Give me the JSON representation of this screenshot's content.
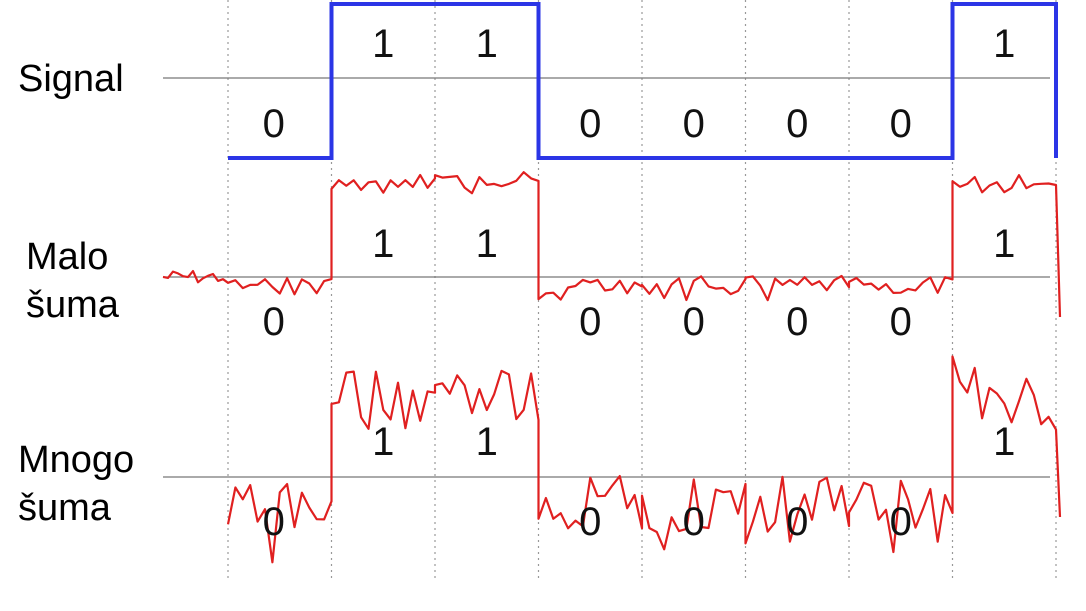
{
  "rows": [
    {
      "label_lines": [
        "Signal"
      ],
      "bit_labels": [
        "0",
        "1",
        "1",
        "0",
        "0",
        "0",
        "0",
        "1"
      ]
    },
    {
      "label_lines": [
        "Malo",
        "šuma"
      ],
      "bit_labels": [
        "0",
        "1",
        "1",
        "0",
        "0",
        "0",
        "0",
        "1"
      ]
    },
    {
      "label_lines": [
        "Mnogo",
        "šuma"
      ],
      "bit_labels": [
        "0",
        "1",
        "1",
        "0",
        "0",
        "0",
        "0",
        "1"
      ]
    }
  ],
  "bits": [
    0,
    1,
    1,
    0,
    0,
    0,
    0,
    1
  ],
  "colors": {
    "signal_line": "#2b35e6",
    "noise_line": "#e02020",
    "grid_line": "#999999",
    "axis_line": "#777777"
  }
}
